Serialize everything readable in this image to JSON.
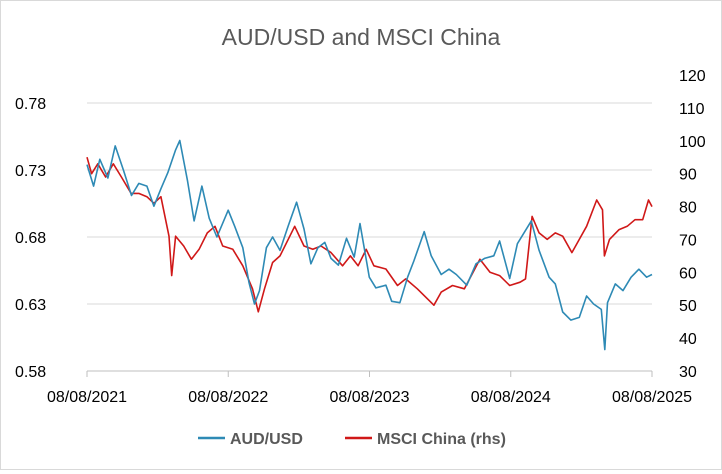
{
  "chart_data": {
    "type": "line",
    "title": "AUD/USD and MSCI China",
    "x_tick_labels": [
      "08/08/2021",
      "08/08/2022",
      "08/08/2023",
      "08/08/2024",
      "08/08/2025"
    ],
    "x_range": [
      "2021-08-08",
      "2025-08-08"
    ],
    "y_left": {
      "ticks": [
        "0.58",
        "0.63",
        "0.68",
        "0.73",
        "0.78"
      ],
      "range": [
        0.58,
        0.78
      ]
    },
    "y_right": {
      "ticks": [
        "30",
        "40",
        "50",
        "60",
        "70",
        "80",
        "90",
        "100",
        "110",
        "120"
      ],
      "range": [
        30,
        120
      ]
    },
    "grid": "horizontal",
    "legend_position": "bottom",
    "series": [
      {
        "name": "AUD/USD",
        "axis": "left",
        "color": "#2E8AB5",
        "points": [
          [
            "2021-08-08",
            0.734
          ],
          [
            "2021-08-25",
            0.718
          ],
          [
            "2021-09-10",
            0.738
          ],
          [
            "2021-10-01",
            0.724
          ],
          [
            "2021-10-20",
            0.748
          ],
          [
            "2021-11-10",
            0.73
          ],
          [
            "2021-12-01",
            0.711
          ],
          [
            "2021-12-20",
            0.72
          ],
          [
            "2022-01-10",
            0.718
          ],
          [
            "2022-01-28",
            0.703
          ],
          [
            "2022-02-15",
            0.716
          ],
          [
            "2022-03-05",
            0.728
          ],
          [
            "2022-03-25",
            0.745
          ],
          [
            "2022-04-05",
            0.752
          ],
          [
            "2022-04-25",
            0.722
          ],
          [
            "2022-05-12",
            0.692
          ],
          [
            "2022-06-01",
            0.718
          ],
          [
            "2022-06-20",
            0.694
          ],
          [
            "2022-07-10",
            0.68
          ],
          [
            "2022-08-08",
            0.7
          ],
          [
            "2022-08-25",
            0.688
          ],
          [
            "2022-09-15",
            0.672
          ],
          [
            "2022-10-01",
            0.646
          ],
          [
            "2022-10-15",
            0.63
          ],
          [
            "2022-10-28",
            0.64
          ],
          [
            "2022-11-15",
            0.672
          ],
          [
            "2022-12-01",
            0.68
          ],
          [
            "2022-12-20",
            0.67
          ],
          [
            "2023-01-10",
            0.688
          ],
          [
            "2023-02-01",
            0.706
          ],
          [
            "2023-02-20",
            0.686
          ],
          [
            "2023-03-10",
            0.66
          ],
          [
            "2023-03-28",
            0.672
          ],
          [
            "2023-04-15",
            0.676
          ],
          [
            "2023-05-01",
            0.664
          ],
          [
            "2023-05-20",
            0.659
          ],
          [
            "2023-06-10",
            0.679
          ],
          [
            "2023-06-30",
            0.665
          ],
          [
            "2023-07-15",
            0.69
          ],
          [
            "2023-08-08",
            0.65
          ],
          [
            "2023-08-25",
            0.642
          ],
          [
            "2023-09-20",
            0.644
          ],
          [
            "2023-10-05",
            0.632
          ],
          [
            "2023-10-26",
            0.631
          ],
          [
            "2023-11-15",
            0.65
          ],
          [
            "2023-12-01",
            0.662
          ],
          [
            "2023-12-28",
            0.684
          ],
          [
            "2024-01-15",
            0.666
          ],
          [
            "2024-02-10",
            0.652
          ],
          [
            "2024-03-01",
            0.656
          ],
          [
            "2024-03-20",
            0.652
          ],
          [
            "2024-04-16",
            0.644
          ],
          [
            "2024-05-10",
            0.66
          ],
          [
            "2024-06-01",
            0.664
          ],
          [
            "2024-06-25",
            0.666
          ],
          [
            "2024-07-10",
            0.677
          ],
          [
            "2024-08-05",
            0.649
          ],
          [
            "2024-08-25",
            0.675
          ],
          [
            "2024-09-30",
            0.692
          ],
          [
            "2024-10-20",
            0.67
          ],
          [
            "2024-11-15",
            0.65
          ],
          [
            "2024-12-01",
            0.645
          ],
          [
            "2024-12-20",
            0.624
          ],
          [
            "2025-01-10",
            0.618
          ],
          [
            "2025-02-01",
            0.62
          ],
          [
            "2025-02-20",
            0.636
          ],
          [
            "2025-03-10",
            0.63
          ],
          [
            "2025-03-30",
            0.626
          ],
          [
            "2025-04-08",
            0.596
          ],
          [
            "2025-04-15",
            0.631
          ],
          [
            "2025-05-05",
            0.645
          ],
          [
            "2025-05-25",
            0.64
          ],
          [
            "2025-06-15",
            0.65
          ],
          [
            "2025-07-05",
            0.656
          ],
          [
            "2025-07-25",
            0.65
          ],
          [
            "2025-08-08",
            0.652
          ]
        ]
      },
      {
        "name": "MSCI China (rhs)",
        "axis": "right",
        "color": "#D01818",
        "points": [
          [
            "2021-08-08",
            95
          ],
          [
            "2021-08-20",
            90
          ],
          [
            "2021-09-05",
            93
          ],
          [
            "2021-09-25",
            89
          ],
          [
            "2021-10-15",
            93
          ],
          [
            "2021-11-05",
            89
          ],
          [
            "2021-11-30",
            84
          ],
          [
            "2021-12-20",
            84
          ],
          [
            "2022-01-10",
            83
          ],
          [
            "2022-01-28",
            81
          ],
          [
            "2022-02-15",
            83
          ],
          [
            "2022-03-08",
            71
          ],
          [
            "2022-03-15",
            59
          ],
          [
            "2022-03-25",
            71
          ],
          [
            "2022-04-15",
            68
          ],
          [
            "2022-05-05",
            64
          ],
          [
            "2022-05-25",
            67
          ],
          [
            "2022-06-15",
            72
          ],
          [
            "2022-07-05",
            74
          ],
          [
            "2022-07-25",
            68
          ],
          [
            "2022-08-20",
            67
          ],
          [
            "2022-09-15",
            62
          ],
          [
            "2022-10-10",
            55
          ],
          [
            "2022-10-25",
            48
          ],
          [
            "2022-11-10",
            55
          ],
          [
            "2022-12-01",
            63
          ],
          [
            "2022-12-20",
            65
          ],
          [
            "2023-01-27",
            74
          ],
          [
            "2023-02-20",
            68
          ],
          [
            "2023-03-15",
            67
          ],
          [
            "2023-04-05",
            68
          ],
          [
            "2023-05-01",
            66
          ],
          [
            "2023-05-31",
            62
          ],
          [
            "2023-06-20",
            65
          ],
          [
            "2023-07-10",
            62
          ],
          [
            "2023-07-31",
            67
          ],
          [
            "2023-08-20",
            62
          ],
          [
            "2023-09-20",
            61
          ],
          [
            "2023-10-20",
            56
          ],
          [
            "2023-11-10",
            58
          ],
          [
            "2023-12-10",
            55
          ],
          [
            "2024-01-22",
            50
          ],
          [
            "2024-02-10",
            54
          ],
          [
            "2024-03-10",
            56
          ],
          [
            "2024-04-10",
            55
          ],
          [
            "2024-05-20",
            64
          ],
          [
            "2024-06-15",
            60
          ],
          [
            "2024-07-10",
            59
          ],
          [
            "2024-08-05",
            56
          ],
          [
            "2024-09-01",
            57
          ],
          [
            "2024-09-15",
            58
          ],
          [
            "2024-10-02",
            77
          ],
          [
            "2024-10-20",
            72
          ],
          [
            "2024-11-10",
            70
          ],
          [
            "2024-12-01",
            72
          ],
          [
            "2024-12-20",
            71
          ],
          [
            "2025-01-13",
            66
          ],
          [
            "2025-02-01",
            70
          ],
          [
            "2025-02-20",
            74
          ],
          [
            "2025-03-18",
            82
          ],
          [
            "2025-04-02",
            79
          ],
          [
            "2025-04-07",
            65
          ],
          [
            "2025-04-20",
            70
          ],
          [
            "2025-05-15",
            73
          ],
          [
            "2025-06-05",
            74
          ],
          [
            "2025-06-25",
            76
          ],
          [
            "2025-07-15",
            76
          ],
          [
            "2025-07-30",
            82
          ],
          [
            "2025-08-08",
            80
          ]
        ]
      }
    ]
  }
}
